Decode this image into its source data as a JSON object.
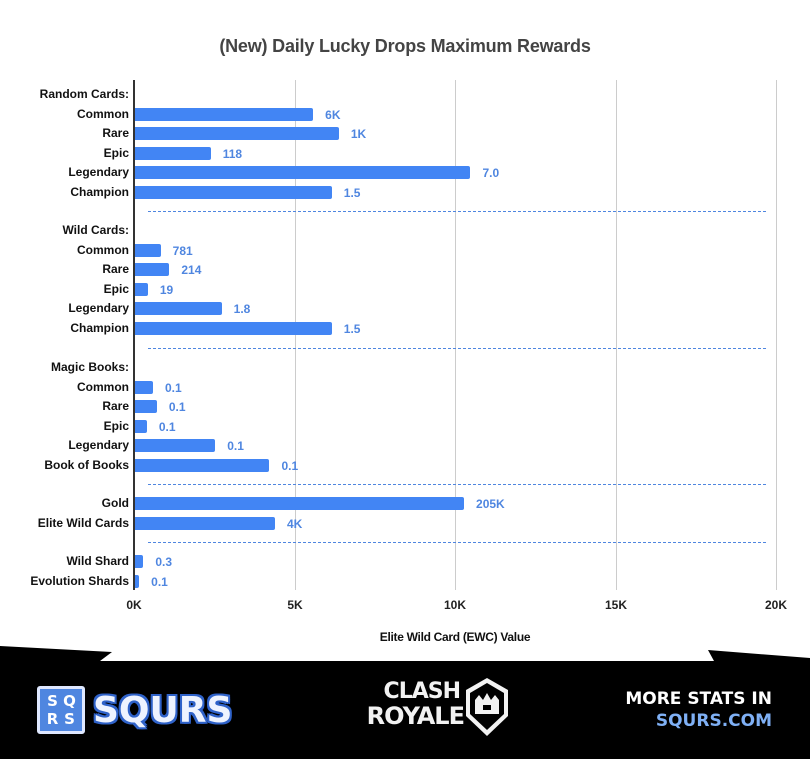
{
  "chart_data": {
    "type": "bar",
    "orientation": "horizontal",
    "title": "(New) Daily Lucky Drops Maximum Rewards",
    "xlabel": "Elite Wild Card (EWC) Value",
    "ylabel": "",
    "xlim": [
      0,
      20000
    ],
    "xticks": [
      "0K",
      "5K",
      "10K",
      "15K",
      "20K"
    ],
    "grid": true,
    "legend": "none",
    "bar_color": "#4285f4",
    "label_color": "#4f86e0",
    "groups": [
      {
        "name": "Random Cards:",
        "items": [
          {
            "label": "Common",
            "value": 5550,
            "data_label": "6K"
          },
          {
            "label": "Rare",
            "value": 6350,
            "data_label": "1K"
          },
          {
            "label": "Epic",
            "value": 2360,
            "data_label": "118"
          },
          {
            "label": "Legendary",
            "value": 10450,
            "data_label": "7.0"
          },
          {
            "label": "Champion",
            "value": 6130,
            "data_label": "1.5"
          }
        ]
      },
      {
        "name": "Wild Cards:",
        "items": [
          {
            "label": "Common",
            "value": 800,
            "data_label": "781"
          },
          {
            "label": "Rare",
            "value": 1070,
            "data_label": "214"
          },
          {
            "label": "Epic",
            "value": 400,
            "data_label": "19"
          },
          {
            "label": "Legendary",
            "value": 2700,
            "data_label": "1.8"
          },
          {
            "label": "Champion",
            "value": 6130,
            "data_label": "1.5"
          }
        ]
      },
      {
        "name": "Magic Books:",
        "items": [
          {
            "label": "Common",
            "value": 560,
            "data_label": "0.1"
          },
          {
            "label": "Rare",
            "value": 680,
            "data_label": "0.1"
          },
          {
            "label": "Epic",
            "value": 370,
            "data_label": "0.1"
          },
          {
            "label": "Legendary",
            "value": 2500,
            "data_label": "0.1"
          },
          {
            "label": "Book of Books",
            "value": 4190,
            "data_label": "0.1"
          }
        ]
      },
      {
        "name": "",
        "items": [
          {
            "label": "Gold",
            "value": 10250,
            "data_label": "205K"
          },
          {
            "label": "Elite Wild Cards",
            "value": 4360,
            "data_label": "4K"
          }
        ]
      },
      {
        "name": "",
        "items": [
          {
            "label": "Wild Shard",
            "value": 260,
            "data_label": "0.3"
          },
          {
            "label": "Evolution Shards",
            "value": 130,
            "data_label": "0.1"
          }
        ]
      }
    ]
  },
  "footer": {
    "brand_box": [
      "S",
      "Q",
      "R",
      "S"
    ],
    "brand_name": "SQURS",
    "game_logo_line1": "CLASH",
    "game_logo_line2": "ROYALE",
    "cta_line1": "MORE STATS IN",
    "cta_line2": "SQURS.COM"
  }
}
